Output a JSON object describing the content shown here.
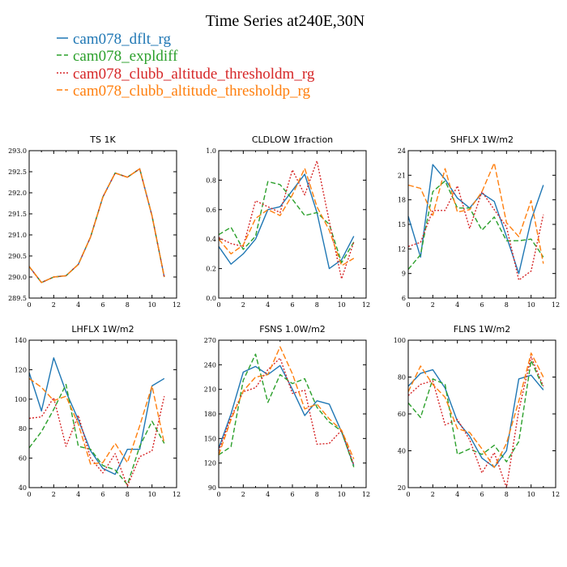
{
  "figure_title": "Time Series at240E,30N",
  "chart_data": {
    "type": "line",
    "legend": [
      {
        "name": "cam078_dflt_rg",
        "color": "#1f77b4",
        "dash": ""
      },
      {
        "name": "cam078_expldiff",
        "color": "#2ca02c",
        "dash": "6,3"
      },
      {
        "name": "cam078_clubb_altitude_thresholdm_rg",
        "color": "#d62728",
        "dash": "2,2"
      },
      {
        "name": "cam078_clubb_altitude_thresholdp_rg",
        "color": "#ff7f0e",
        "dash": "7,3"
      }
    ],
    "panels": [
      {
        "title": "TS   1K",
        "x": [
          0,
          1,
          2,
          3,
          4,
          5,
          6,
          7,
          8,
          9,
          10,
          11
        ],
        "xlim": [
          0,
          12
        ],
        "xticks": [
          0,
          2,
          4,
          6,
          8,
          10,
          12
        ],
        "ylim": [
          289.5,
          293.0
        ],
        "yticks": [
          "289.5",
          "290.0",
          "290.5",
          "291.0",
          "291.5",
          "292.0",
          "292.5",
          "293.0"
        ],
        "series": [
          {
            "name": "cam078_dflt_rg",
            "values": [
              290.25,
              289.87,
              290.0,
              290.03,
              290.3,
              290.95,
              291.9,
              292.47,
              292.37,
              292.57,
              291.45,
              290.0
            ]
          },
          {
            "name": "cam078_expldiff",
            "values": [
              290.25,
              289.87,
              290.0,
              290.03,
              290.3,
              290.95,
              291.9,
              292.47,
              292.37,
              292.57,
              291.45,
              290.0
            ]
          },
          {
            "name": "cam078_clubb_altitude_thresholdm_rg",
            "values": [
              290.25,
              289.87,
              290.0,
              290.03,
              290.3,
              290.95,
              291.9,
              292.47,
              292.37,
              292.57,
              291.45,
              290.0
            ]
          },
          {
            "name": "cam078_clubb_altitude_thresholdp_rg",
            "values": [
              290.25,
              289.87,
              290.0,
              290.03,
              290.3,
              290.95,
              291.9,
              292.47,
              292.37,
              292.57,
              291.45,
              290.0
            ]
          }
        ]
      },
      {
        "title": "CLDLOW   1fraction",
        "x": [
          0,
          1,
          2,
          3,
          4,
          5,
          6,
          7,
          8,
          9,
          10,
          11
        ],
        "xlim": [
          0,
          12
        ],
        "xticks": [
          0,
          2,
          4,
          6,
          8,
          10,
          12
        ],
        "ylim": [
          0.0,
          1.0
        ],
        "yticks": [
          "0.0",
          "0.2",
          "0.4",
          "0.6",
          "0.8",
          "1.0"
        ],
        "series": [
          {
            "name": "cam078_dflt_rg",
            "values": [
              0.35,
              0.23,
              0.3,
              0.4,
              0.6,
              0.62,
              0.73,
              0.84,
              0.58,
              0.2,
              0.26,
              0.42
            ]
          },
          {
            "name": "cam078_expldiff",
            "values": [
              0.43,
              0.48,
              0.33,
              0.42,
              0.79,
              0.77,
              0.67,
              0.56,
              0.58,
              0.5,
              0.24,
              0.38
            ]
          },
          {
            "name": "cam078_clubb_altitude_thresholdm_rg",
            "values": [
              0.41,
              0.37,
              0.35,
              0.66,
              0.62,
              0.58,
              0.87,
              0.7,
              0.93,
              0.52,
              0.13,
              0.38
            ]
          },
          {
            "name": "cam078_clubb_altitude_thresholdp_rg",
            "values": [
              0.4,
              0.3,
              0.36,
              0.54,
              0.6,
              0.56,
              0.7,
              0.88,
              0.62,
              0.46,
              0.22,
              0.27
            ]
          }
        ]
      },
      {
        "title": "SHFLX   1W/m2",
        "x": [
          0,
          1,
          2,
          3,
          4,
          5,
          6,
          7,
          8,
          9,
          10,
          11
        ],
        "xlim": [
          0,
          12
        ],
        "xticks": [
          0,
          2,
          4,
          6,
          8,
          10,
          12
        ],
        "ylim": [
          6,
          24
        ],
        "yticks": [
          "6",
          "9",
          "12",
          "15",
          "18",
          "21",
          "24"
        ],
        "series": [
          {
            "name": "cam078_dflt_rg",
            "values": [
              16.0,
              11.0,
              22.3,
              20.5,
              18.2,
              17.0,
              18.8,
              17.8,
              13.5,
              9.0,
              15.5,
              19.8
            ]
          },
          {
            "name": "cam078_expldiff",
            "values": [
              9.5,
              11.3,
              19.0,
              20.3,
              17.0,
              17.0,
              14.3,
              15.9,
              13.0,
              13.0,
              13.2,
              11.0
            ]
          },
          {
            "name": "cam078_clubb_altitude_thresholdm_rg",
            "values": [
              12.3,
              12.8,
              16.7,
              16.7,
              19.7,
              14.5,
              19.0,
              16.8,
              14.7,
              8.2,
              9.3,
              16.2
            ]
          },
          {
            "name": "cam078_clubb_altitude_thresholdp_rg",
            "values": [
              19.8,
              19.4,
              16.1,
              21.8,
              16.5,
              16.8,
              19.0,
              22.5,
              15.2,
              13.5,
              17.9,
              10.2
            ]
          }
        ]
      },
      {
        "title": "LHFLX   1W/m2",
        "x": [
          0,
          1,
          2,
          3,
          4,
          5,
          6,
          7,
          8,
          9,
          10,
          11
        ],
        "xlim": [
          0,
          12
        ],
        "xticks": [
          0,
          2,
          4,
          6,
          8,
          10,
          12
        ],
        "ylim": [
          40,
          140
        ],
        "yticks": [
          "40",
          "60",
          "80",
          "100",
          "120",
          "140"
        ],
        "series": [
          {
            "name": "cam078_dflt_rg",
            "values": [
              118,
              92,
              128,
              105,
              86,
              65,
              53,
              49,
              66,
              66,
              109,
              114
            ]
          },
          {
            "name": "cam078_expldiff",
            "values": [
              67,
              78,
              93,
              110,
              68,
              66,
              55,
              52,
              42,
              68,
              85,
              70
            ]
          },
          {
            "name": "cam078_clubb_altitude_thresholdm_rg",
            "values": [
              87,
              88,
              101,
              68,
              89,
              60,
              50,
              63,
              41,
              61,
              65,
              102
            ]
          },
          {
            "name": "cam078_clubb_altitude_thresholdp_rg",
            "values": [
              114,
              108,
              99,
              102,
              83,
              56,
              57,
              70,
              57,
              82,
              109,
              70
            ]
          }
        ]
      },
      {
        "title": "FSNS   1.0W/m2",
        "x": [
          0,
          1,
          2,
          3,
          4,
          5,
          6,
          7,
          8,
          9,
          10,
          11
        ],
        "xlim": [
          0,
          12
        ],
        "xticks": [
          0,
          2,
          4,
          6,
          8,
          10,
          12
        ],
        "ylim": [
          90,
          270
        ],
        "yticks": [
          "90",
          "120",
          "150",
          "180",
          "210",
          "240",
          "270"
        ],
        "series": [
          {
            "name": "cam078_dflt_rg",
            "values": [
              138,
              180,
              231,
              238,
              228,
              239,
              210,
              178,
              196,
              192,
              158,
              117
            ]
          },
          {
            "name": "cam078_expldiff",
            "values": [
              130,
              140,
              221,
              253,
              194,
              228,
              217,
              223,
              188,
              170,
              159,
              115
            ]
          },
          {
            "name": "cam078_clubb_altitude_thresholdm_rg",
            "values": [
              135,
              176,
              207,
              212,
              234,
              248,
              205,
              209,
              143,
              144,
              160,
              118
            ]
          },
          {
            "name": "cam078_clubb_altitude_thresholdp_rg",
            "values": [
              130,
              173,
              208,
              225,
              228,
              262,
              229,
              186,
              192,
              174,
              160,
              125
            ]
          }
        ]
      },
      {
        "title": "FLNS   1W/m2",
        "x": [
          0,
          1,
          2,
          3,
          4,
          5,
          6,
          7,
          8,
          9,
          10,
          11
        ],
        "xlim": [
          0,
          12
        ],
        "xticks": [
          0,
          2,
          4,
          6,
          8,
          10,
          12
        ],
        "ylim": [
          20,
          100
        ],
        "yticks": [
          "20",
          "40",
          "60",
          "80",
          "100"
        ],
        "series": [
          {
            "name": "cam078_dflt_rg",
            "values": [
              75,
              82,
              84,
              74,
              56,
              48,
              36,
              31,
              40,
              79,
              81,
              73
            ]
          },
          {
            "name": "cam078_expldiff",
            "values": [
              66,
              58,
              79,
              76,
              38,
              41,
              38,
              43,
              34,
              45,
              89,
              74
            ]
          },
          {
            "name": "cam078_clubb_altitude_thresholdm_rg",
            "values": [
              70,
              76,
              78,
              54,
              57,
              46,
              28,
              39,
              20,
              62,
              91,
              75
            ]
          },
          {
            "name": "cam078_clubb_altitude_thresholdp_rg",
            "values": [
              72,
              86,
              76,
              69,
              52,
              50,
              41,
              31,
              44,
              67,
              93,
              80
            ]
          }
        ]
      }
    ]
  }
}
